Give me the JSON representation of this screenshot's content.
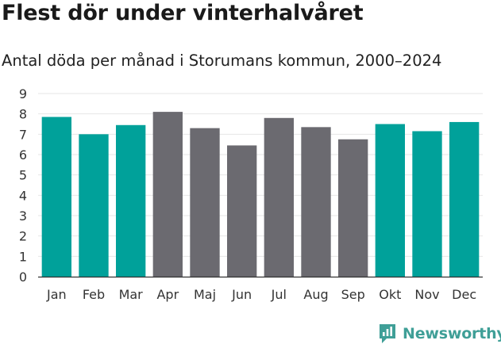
{
  "header": {
    "title": "Flest dör under vinterhalvåret",
    "subtitle": "Antal döda per månad i Storumans kommun, 2000–2024"
  },
  "brand": {
    "name": "Newsworthy",
    "icon": "newsworthy-logo-icon",
    "color": "#3f9f97"
  },
  "colors": {
    "winter": "#00a19a",
    "summer": "#6b6a70",
    "grid": "#e6e6e6",
    "axis": "#333333"
  },
  "chart_data": {
    "type": "bar",
    "title": "Flest dör under vinterhalvåret",
    "subtitle": "Antal döda per månad i Storumans kommun, 2000–2024",
    "xlabel": "",
    "ylabel": "",
    "ylim": [
      0,
      9
    ],
    "yticks": [
      0,
      1,
      2,
      3,
      4,
      5,
      6,
      7,
      8,
      9
    ],
    "grid": true,
    "categories": [
      "Jan",
      "Feb",
      "Mar",
      "Apr",
      "Maj",
      "Jun",
      "Jul",
      "Aug",
      "Sep",
      "Okt",
      "Nov",
      "Dec"
    ],
    "values": [
      7.85,
      7.0,
      7.45,
      8.1,
      7.3,
      6.45,
      7.8,
      7.35,
      6.75,
      7.5,
      7.15,
      7.6
    ],
    "groups": [
      "winter",
      "winter",
      "winter",
      "summer",
      "summer",
      "summer",
      "summer",
      "summer",
      "summer",
      "winter",
      "winter",
      "winter"
    ]
  }
}
